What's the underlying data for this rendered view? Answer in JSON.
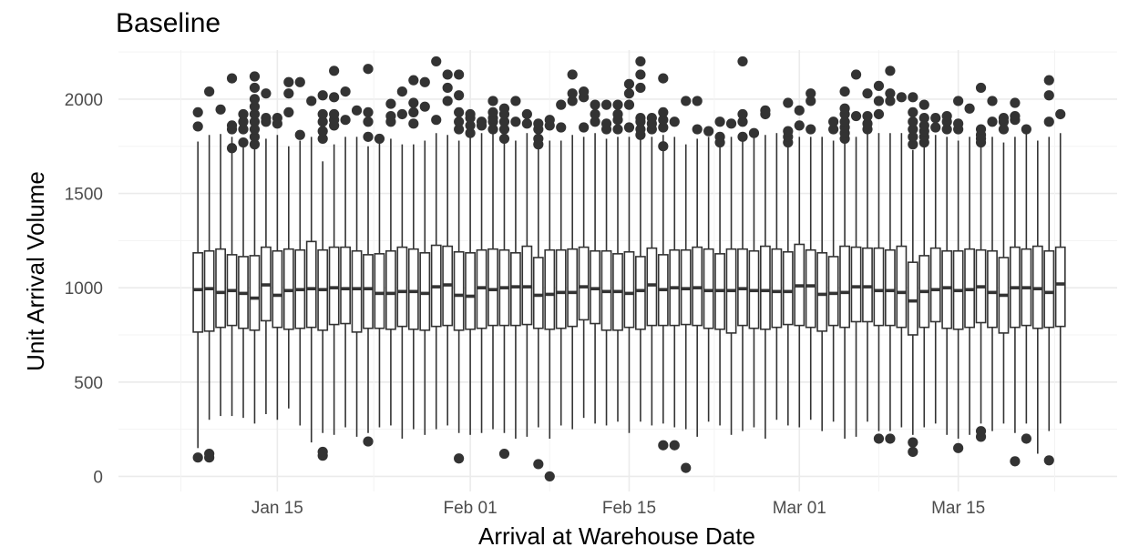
{
  "chart_data": {
    "type": "box",
    "title": "Baseline",
    "xlabel": "Arrival at Warehouse Date",
    "ylabel": "Unit Arrival Volume",
    "ylim": [
      -80,
      2260
    ],
    "xlim": [
      "2024-01-01",
      "2024-03-29"
    ],
    "grid": true,
    "x_ticks": [
      "Jan 15",
      "Feb 01",
      "Feb 15",
      "Mar 01",
      "Mar 15"
    ],
    "x_tick_dates": [
      "2024-01-15",
      "2024-02-01",
      "2024-02-15",
      "2024-03-01",
      "2024-03-15"
    ],
    "y_ticks": [
      0,
      500,
      1000,
      1500,
      2000
    ],
    "start_date": "2024-01-08",
    "series": [
      {
        "q1": 765,
        "median": 990,
        "q3": 1185,
        "lo": 150,
        "hi": 1775,
        "outliers": [
          100,
          1855,
          1930
        ]
      },
      {
        "q1": 770,
        "median": 995,
        "q3": 1195,
        "lo": 300,
        "hi": 1810,
        "outliers": [
          100,
          120,
          2040
        ]
      },
      {
        "q1": 790,
        "median": 975,
        "q3": 1205,
        "lo": 320,
        "hi": 1815,
        "outliers": [
          1945
        ]
      },
      {
        "q1": 800,
        "median": 985,
        "q3": 1175,
        "lo": 320,
        "hi": 1800,
        "outliers": [
          1740,
          1840,
          1860,
          2110
        ]
      },
      {
        "q1": 785,
        "median": 970,
        "q3": 1165,
        "lo": 310,
        "hi": 1770,
        "outliers": [
          1770,
          1840,
          1880,
          1920
        ]
      },
      {
        "q1": 775,
        "median": 945,
        "q3": 1170,
        "lo": 280,
        "hi": 1740,
        "outliers": [
          1760,
          1800,
          1840,
          1880,
          1920,
          1960,
          2000,
          2060,
          2120
        ]
      },
      {
        "q1": 825,
        "median": 1015,
        "q3": 1215,
        "lo": 330,
        "hi": 1790,
        "outliers": [
          1880,
          1900,
          2030
        ]
      },
      {
        "q1": 790,
        "median": 960,
        "q3": 1195,
        "lo": 300,
        "hi": 1810,
        "outliers": [
          1870,
          1900
        ]
      },
      {
        "q1": 780,
        "median": 985,
        "q3": 1205,
        "lo": 360,
        "hi": 1750,
        "outliers": [
          1930,
          2030,
          2090
        ]
      },
      {
        "q1": 785,
        "median": 990,
        "q3": 1200,
        "lo": 270,
        "hi": 1780,
        "outliers": [
          1810,
          2090
        ]
      },
      {
        "q1": 790,
        "median": 995,
        "q3": 1245,
        "lo": 180,
        "hi": 1800,
        "outliers": [
          1990
        ]
      },
      {
        "q1": 775,
        "median": 990,
        "q3": 1200,
        "lo": 230,
        "hi": 1670,
        "outliers": [
          110,
          130,
          1790,
          1830,
          1880,
          1920,
          2020
        ]
      },
      {
        "q1": 805,
        "median": 1000,
        "q3": 1215,
        "lo": 220,
        "hi": 1760,
        "outliers": [
          1860,
          1890,
          1920,
          2010,
          2150
        ]
      },
      {
        "q1": 810,
        "median": 995,
        "q3": 1215,
        "lo": 260,
        "hi": 1800,
        "outliers": [
          1890,
          2040
        ]
      },
      {
        "q1": 765,
        "median": 995,
        "q3": 1195,
        "lo": 210,
        "hi": 1800,
        "outliers": [
          1940
        ]
      },
      {
        "q1": 785,
        "median": 995,
        "q3": 1175,
        "lo": 230,
        "hi": 1750,
        "outliers": [
          185,
          1800,
          1880,
          1930,
          2160
        ]
      },
      {
        "q1": 785,
        "median": 970,
        "q3": 1180,
        "lo": 260,
        "hi": 1780,
        "outliers": [
          1790
        ]
      },
      {
        "q1": 780,
        "median": 970,
        "q3": 1195,
        "lo": 270,
        "hi": 1790,
        "outliers": [
          1880,
          1910,
          1975
        ]
      },
      {
        "q1": 795,
        "median": 980,
        "q3": 1215,
        "lo": 200,
        "hi": 1760,
        "outliers": [
          1920,
          2040
        ]
      },
      {
        "q1": 780,
        "median": 980,
        "q3": 1205,
        "lo": 250,
        "hi": 1760,
        "outliers": [
          1870,
          1930,
          1980,
          2100
        ]
      },
      {
        "q1": 775,
        "median": 970,
        "q3": 1185,
        "lo": 220,
        "hi": 1780,
        "outliers": [
          1960,
          2090
        ]
      },
      {
        "q1": 795,
        "median": 1005,
        "q3": 1225,
        "lo": 250,
        "hi": 1820,
        "outliers": [
          1890,
          2200
        ]
      },
      {
        "q1": 800,
        "median": 1015,
        "q3": 1220,
        "lo": 270,
        "hi": 1810,
        "outliers": [
          1990,
          2060,
          2130
        ]
      },
      {
        "q1": 775,
        "median": 960,
        "q3": 1190,
        "lo": 230,
        "hi": 1780,
        "outliers": [
          95,
          1840,
          1880,
          1930,
          2020,
          2130
        ]
      },
      {
        "q1": 780,
        "median": 955,
        "q3": 1185,
        "lo": 220,
        "hi": 1820,
        "outliers": [
          1820,
          1860,
          1900,
          1920
        ]
      },
      {
        "q1": 785,
        "median": 1000,
        "q3": 1200,
        "lo": 230,
        "hi": 1820,
        "outliers": [
          1860,
          1880
        ]
      },
      {
        "q1": 800,
        "median": 990,
        "q3": 1205,
        "lo": 250,
        "hi": 1820,
        "outliers": [
          1840,
          1880,
          1900,
          1930,
          1990
        ]
      },
      {
        "q1": 800,
        "median": 1000,
        "q3": 1200,
        "lo": 230,
        "hi": 1790,
        "outliers": [
          120,
          1790,
          1840,
          1880,
          1920,
          1950
        ]
      },
      {
        "q1": 800,
        "median": 1005,
        "q3": 1185,
        "lo": 200,
        "hi": 1780,
        "outliers": [
          1880,
          1990
        ]
      },
      {
        "q1": 805,
        "median": 1005,
        "q3": 1220,
        "lo": 210,
        "hi": 1820,
        "outliers": [
          1870,
          1920
        ]
      },
      {
        "q1": 785,
        "median": 960,
        "q3": 1160,
        "lo": 260,
        "hi": 1740,
        "outliers": [
          65,
          1760,
          1790,
          1840,
          1870
        ]
      },
      {
        "q1": 780,
        "median": 965,
        "q3": 1200,
        "lo": 200,
        "hi": 1780,
        "outliers": [
          0,
          1860,
          1890
        ]
      },
      {
        "q1": 785,
        "median": 975,
        "q3": 1200,
        "lo": 270,
        "hi": 1780,
        "outliers": [
          1850,
          1970
        ]
      },
      {
        "q1": 795,
        "median": 975,
        "q3": 1205,
        "lo": 250,
        "hi": 1810,
        "outliers": [
          1990,
          2030,
          2130
        ]
      },
      {
        "q1": 830,
        "median": 1005,
        "q3": 1215,
        "lo": 310,
        "hi": 1800,
        "outliers": [
          1850,
          2010,
          2040
        ]
      },
      {
        "q1": 810,
        "median": 995,
        "q3": 1195,
        "lo": 280,
        "hi": 1820,
        "outliers": [
          1880,
          1920,
          1970
        ]
      },
      {
        "q1": 775,
        "median": 980,
        "q3": 1195,
        "lo": 270,
        "hi": 1790,
        "outliers": [
          1840,
          1870,
          1970
        ]
      },
      {
        "q1": 775,
        "median": 980,
        "q3": 1180,
        "lo": 290,
        "hi": 1800,
        "outliers": [
          1840,
          1890,
          1920,
          1970
        ]
      },
      {
        "q1": 790,
        "median": 970,
        "q3": 1190,
        "lo": 230,
        "hi": 1800,
        "outliers": [
          1850,
          1970,
          2030,
          2080
        ]
      },
      {
        "q1": 780,
        "median": 985,
        "q3": 1165,
        "lo": 290,
        "hi": 1790,
        "outliers": [
          1810,
          1840,
          1880,
          1900,
          2060,
          2130,
          2200
        ]
      },
      {
        "q1": 800,
        "median": 1015,
        "q3": 1210,
        "lo": 270,
        "hi": 1800,
        "outliers": [
          1840,
          1870,
          1900
        ]
      },
      {
        "q1": 800,
        "median": 990,
        "q3": 1175,
        "lo": 280,
        "hi": 1810,
        "outliers": [
          165,
          1750,
          1850,
          1890,
          1930,
          2110
        ]
      },
      {
        "q1": 800,
        "median": 1000,
        "q3": 1200,
        "lo": 260,
        "hi": 1800,
        "outliers": [
          165,
          1880
        ]
      },
      {
        "q1": 805,
        "median": 995,
        "q3": 1200,
        "lo": 250,
        "hi": 1760,
        "outliers": [
          45,
          1990
        ]
      },
      {
        "q1": 800,
        "median": 1000,
        "q3": 1215,
        "lo": 210,
        "hi": 1790,
        "outliers": [
          1840,
          1990
        ]
      },
      {
        "q1": 785,
        "median": 985,
        "q3": 1205,
        "lo": 290,
        "hi": 1800,
        "outliers": [
          1830
        ]
      },
      {
        "q1": 780,
        "median": 985,
        "q3": 1180,
        "lo": 270,
        "hi": 1760,
        "outliers": [
          1770,
          1800,
          1880
        ]
      },
      {
        "q1": 760,
        "median": 985,
        "q3": 1205,
        "lo": 220,
        "hi": 1800,
        "outliers": [
          1870
        ]
      },
      {
        "q1": 800,
        "median": 995,
        "q3": 1205,
        "lo": 240,
        "hi": 1780,
        "outliers": [
          1800,
          1880,
          1920,
          2200
        ]
      },
      {
        "q1": 785,
        "median": 985,
        "q3": 1195,
        "lo": 260,
        "hi": 1800,
        "outliers": [
          1820
        ]
      },
      {
        "q1": 780,
        "median": 985,
        "q3": 1220,
        "lo": 200,
        "hi": 1810,
        "outliers": [
          1920,
          1940
        ]
      },
      {
        "q1": 790,
        "median": 980,
        "q3": 1205,
        "lo": 300,
        "hi": 1820,
        "outliers": []
      },
      {
        "q1": 805,
        "median": 980,
        "q3": 1190,
        "lo": 270,
        "hi": 1760,
        "outliers": [
          1770,
          1800,
          1830,
          1980
        ]
      },
      {
        "q1": 800,
        "median": 1010,
        "q3": 1230,
        "lo": 260,
        "hi": 1800,
        "outliers": [
          1860,
          1940
        ]
      },
      {
        "q1": 790,
        "median": 1010,
        "q3": 1200,
        "lo": 300,
        "hi": 1800,
        "outliers": [
          1840,
          1990,
          2030
        ]
      },
      {
        "q1": 770,
        "median": 965,
        "q3": 1185,
        "lo": 240,
        "hi": 1800,
        "outliers": []
      },
      {
        "q1": 800,
        "median": 970,
        "q3": 1165,
        "lo": 290,
        "hi": 1780,
        "outliers": [
          1840,
          1880
        ]
      },
      {
        "q1": 790,
        "median": 975,
        "q3": 1220,
        "lo": 200,
        "hi": 1800,
        "outliers": [
          1790,
          1820,
          1850,
          1880,
          1920,
          1950,
          2040
        ]
      },
      {
        "q1": 820,
        "median": 1005,
        "q3": 1215,
        "lo": 210,
        "hi": 1800,
        "outliers": [
          1910,
          2130
        ]
      },
      {
        "q1": 820,
        "median": 1005,
        "q3": 1210,
        "lo": 290,
        "hi": 1820,
        "outliers": [
          1840,
          1870,
          1910,
          2030
        ]
      },
      {
        "q1": 800,
        "median": 985,
        "q3": 1210,
        "lo": 240,
        "hi": 1820,
        "outliers": [
          200,
          1920,
          1990,
          2070
        ]
      },
      {
        "q1": 800,
        "median": 985,
        "q3": 1200,
        "lo": 240,
        "hi": 1820,
        "outliers": [
          200,
          1990,
          2030,
          2150
        ]
      },
      {
        "q1": 790,
        "median": 975,
        "q3": 1220,
        "lo": 260,
        "hi": 1820,
        "outliers": [
          2010
        ]
      },
      {
        "q1": 750,
        "median": 930,
        "q3": 1135,
        "lo": 220,
        "hi": 1730,
        "outliers": [
          130,
          180,
          1760,
          1800,
          1840,
          1880,
          1930,
          2010
        ]
      },
      {
        "q1": 790,
        "median": 980,
        "q3": 1170,
        "lo": 260,
        "hi": 1770,
        "outliers": [
          1770,
          1800,
          1830,
          1860,
          1900,
          1970
        ]
      },
      {
        "q1": 820,
        "median": 990,
        "q3": 1210,
        "lo": 280,
        "hi": 1810,
        "outliers": [
          1850,
          1900
        ]
      },
      {
        "q1": 785,
        "median": 1000,
        "q3": 1195,
        "lo": 220,
        "hi": 1800,
        "outliers": [
          1840,
          1880,
          1910
        ]
      },
      {
        "q1": 780,
        "median": 985,
        "q3": 1195,
        "lo": 200,
        "hi": 1780,
        "outliers": [
          150,
          1840,
          1870,
          1990
        ]
      },
      {
        "q1": 790,
        "median": 990,
        "q3": 1205,
        "lo": 220,
        "hi": 1800,
        "outliers": [
          1950
        ]
      },
      {
        "q1": 815,
        "median": 1005,
        "q3": 1200,
        "lo": 280,
        "hi": 1790,
        "outliers": [
          210,
          240,
          1770,
          1790,
          1810,
          1840,
          2060
        ]
      },
      {
        "q1": 790,
        "median": 975,
        "q3": 1195,
        "lo": 240,
        "hi": 1800,
        "outliers": [
          1880,
          1990
        ]
      },
      {
        "q1": 760,
        "median": 960,
        "q3": 1160,
        "lo": 280,
        "hi": 1770,
        "outliers": [
          1840,
          1880,
          1900
        ]
      },
      {
        "q1": 790,
        "median": 1000,
        "q3": 1215,
        "lo": 230,
        "hi": 1800,
        "outliers": [
          80,
          1890,
          1910,
          1980
        ]
      },
      {
        "q1": 800,
        "median": 1000,
        "q3": 1205,
        "lo": 280,
        "hi": 1820,
        "outliers": [
          200,
          1840
        ]
      },
      {
        "q1": 785,
        "median": 995,
        "q3": 1220,
        "lo": 120,
        "hi": 1780,
        "outliers": []
      },
      {
        "q1": 790,
        "median": 975,
        "q3": 1195,
        "lo": 240,
        "hi": 1800,
        "outliers": [
          85,
          1880,
          2020,
          2100
        ]
      },
      {
        "q1": 795,
        "median": 1020,
        "q3": 1215,
        "lo": 280,
        "hi": 1820,
        "outliers": [
          1920
        ]
      }
    ]
  }
}
